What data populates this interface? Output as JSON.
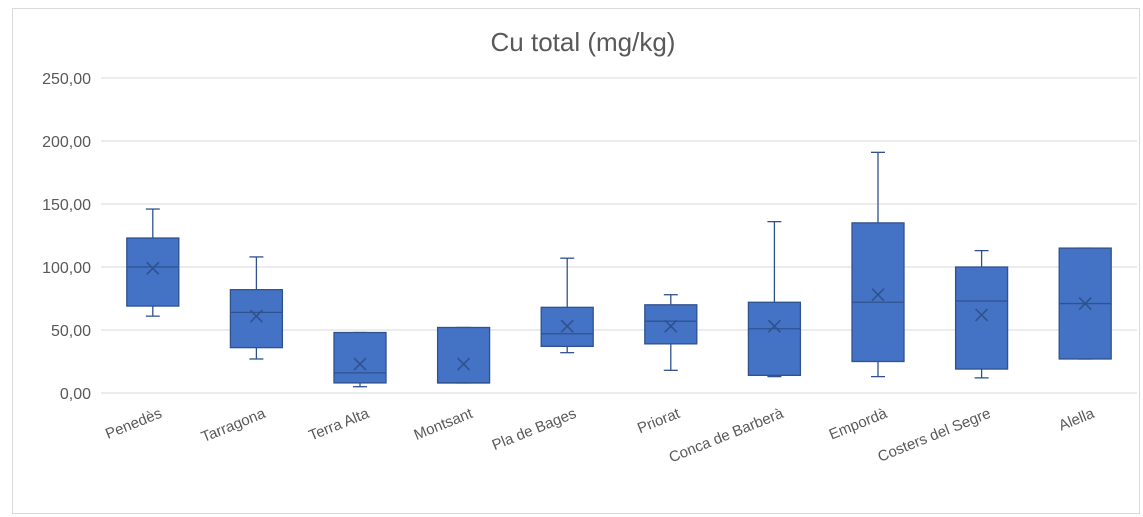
{
  "chart_data": {
    "type": "box",
    "title": "Cu total (mg/kg)",
    "xlabel": "",
    "ylabel": "",
    "ylim": [
      0,
      250
    ],
    "y_ticks": [
      "0,00",
      "50,00",
      "100,00",
      "150,00",
      "200,00",
      "250,00"
    ],
    "y_tick_values": [
      0,
      50,
      100,
      150,
      200,
      250
    ],
    "grid": true,
    "colors": {
      "box_fill": "#4472c4",
      "box_stroke": "#2f528f",
      "grid": "#d9d9d9",
      "text": "#595959"
    },
    "categories": [
      "Penedès",
      "Tarragona",
      "Terra Alta",
      "Montsant",
      "Pla de Bages",
      "Priorat",
      "Conca de Barberà",
      "Empordà",
      "Costers del Segre",
      "Alella"
    ],
    "boxes": [
      {
        "min": 61,
        "q1": 69,
        "median": 100,
        "q3": 123,
        "max": 146,
        "mean": 99
      },
      {
        "min": 27,
        "q1": 36,
        "median": 64,
        "q3": 82,
        "max": 108,
        "mean": 61
      },
      {
        "min": 5,
        "q1": 8,
        "median": 16,
        "q3": 48,
        "max": 48,
        "mean": 23
      },
      {
        "min": 8,
        "q1": 8,
        "median": 8,
        "q3": 52,
        "max": 52,
        "mean": 23
      },
      {
        "min": 32,
        "q1": 37,
        "median": 47,
        "q3": 68,
        "max": 107,
        "mean": 53
      },
      {
        "min": 18,
        "q1": 39,
        "median": 57,
        "q3": 70,
        "max": 78,
        "mean": 53
      },
      {
        "min": 13,
        "q1": 14,
        "median": 51,
        "q3": 72,
        "max": 136,
        "mean": 53
      },
      {
        "min": 13,
        "q1": 25,
        "median": 72,
        "q3": 135,
        "max": 191,
        "mean": 78
      },
      {
        "min": 12,
        "q1": 19,
        "median": 73,
        "q3": 100,
        "max": 113,
        "mean": 62
      },
      {
        "min": 27,
        "q1": 27,
        "median": 71,
        "q3": 115,
        "max": 115,
        "mean": 71
      }
    ]
  }
}
